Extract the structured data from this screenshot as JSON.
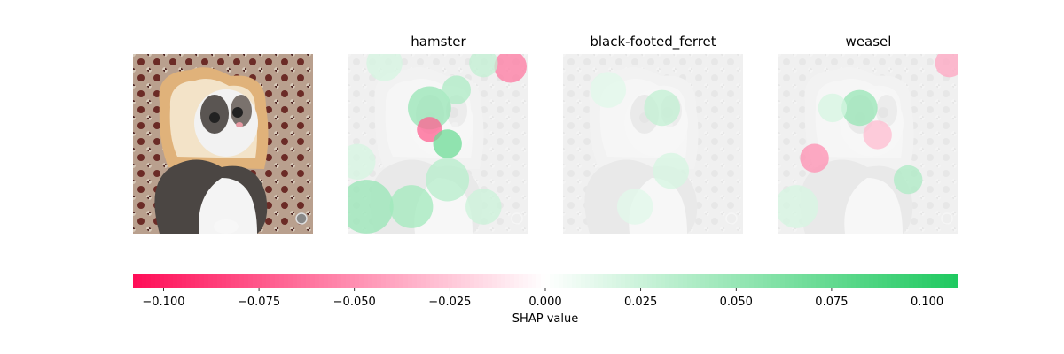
{
  "chart_data": {
    "type": "heatmap",
    "description_of_panels": [
      "original",
      "hamster",
      "black-footed_ferret",
      "weasel"
    ],
    "titles": [
      "",
      "hamster",
      "black-footed_ferret",
      "weasel"
    ],
    "colorbar": {
      "label": "SHAP value",
      "range": [
        -0.108,
        0.108
      ],
      "ticks": [
        -0.1,
        -0.075,
        -0.05,
        -0.025,
        0.0,
        0.025,
        0.05,
        0.075,
        0.1
      ],
      "tick_labels": [
        "−0.100",
        "−0.075",
        "−0.050",
        "−0.025",
        "0.000",
        "0.025",
        "0.050",
        "0.075",
        "0.100"
      ],
      "negative_color": "#ff0d57",
      "positive_color": "#1ec95f"
    },
    "heatmaps": [
      {
        "class": "hamster",
        "segments": [
          {
            "cx": 0.9,
            "cy": 0.07,
            "r": 0.09,
            "value": -0.06
          },
          {
            "cx": 0.45,
            "cy": 0.3,
            "r": 0.12,
            "value": 0.05
          },
          {
            "cx": 0.6,
            "cy": 0.2,
            "r": 0.08,
            "value": 0.04
          },
          {
            "cx": 0.45,
            "cy": 0.42,
            "r": 0.07,
            "value": -0.07
          },
          {
            "cx": 0.55,
            "cy": 0.5,
            "r": 0.08,
            "value": 0.07
          },
          {
            "cx": 0.1,
            "cy": 0.85,
            "r": 0.15,
            "value": 0.05
          },
          {
            "cx": 0.35,
            "cy": 0.85,
            "r": 0.12,
            "value": 0.045
          },
          {
            "cx": 0.55,
            "cy": 0.7,
            "r": 0.12,
            "value": 0.035
          },
          {
            "cx": 0.2,
            "cy": 0.05,
            "r": 0.1,
            "value": 0.02
          },
          {
            "cx": 0.75,
            "cy": 0.05,
            "r": 0.08,
            "value": 0.03
          },
          {
            "cx": 0.05,
            "cy": 0.6,
            "r": 0.1,
            "value": 0.02
          },
          {
            "cx": 0.75,
            "cy": 0.85,
            "r": 0.1,
            "value": 0.025
          }
        ]
      },
      {
        "class": "black-footed_ferret",
        "segments": [
          {
            "cx": 0.55,
            "cy": 0.3,
            "r": 0.1,
            "value": 0.03
          },
          {
            "cx": 0.25,
            "cy": 0.2,
            "r": 0.1,
            "value": 0.015
          },
          {
            "cx": 0.6,
            "cy": 0.65,
            "r": 0.1,
            "value": 0.02
          },
          {
            "cx": 0.4,
            "cy": 0.85,
            "r": 0.1,
            "value": 0.015
          }
        ]
      },
      {
        "class": "weasel",
        "segments": [
          {
            "cx": 0.95,
            "cy": 0.05,
            "r": 0.08,
            "value": -0.04
          },
          {
            "cx": 0.45,
            "cy": 0.3,
            "r": 0.1,
            "value": 0.05
          },
          {
            "cx": 0.55,
            "cy": 0.45,
            "r": 0.08,
            "value": -0.03
          },
          {
            "cx": 0.2,
            "cy": 0.58,
            "r": 0.08,
            "value": -0.05
          },
          {
            "cx": 0.72,
            "cy": 0.7,
            "r": 0.08,
            "value": 0.04
          },
          {
            "cx": 0.3,
            "cy": 0.3,
            "r": 0.08,
            "value": 0.02
          },
          {
            "cx": 0.1,
            "cy": 0.85,
            "r": 0.12,
            "value": 0.02
          }
        ]
      }
    ]
  }
}
